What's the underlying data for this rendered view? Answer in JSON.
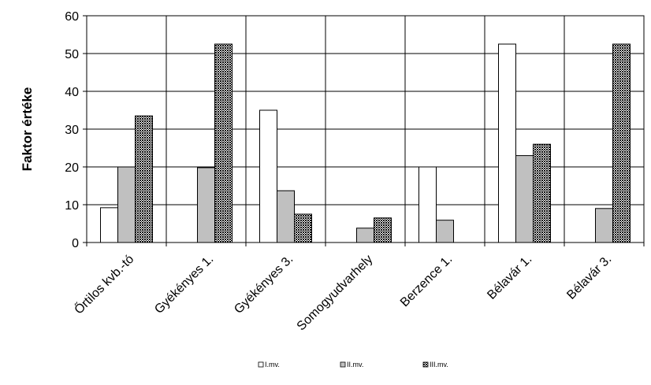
{
  "chart_data": {
    "type": "bar",
    "ylabel": "Faktor értéke",
    "ylim": [
      0,
      60
    ],
    "yticks": [
      0,
      10,
      20,
      30,
      40,
      50,
      60
    ],
    "grid": true,
    "legend_position": "bottom",
    "categories": [
      "Őrtilos kvb.-tó",
      "Gyékényes 1.",
      "Gyékényes 3.",
      "Somogyudvarhely",
      "Berzence 1.",
      "Bélavár 1.",
      "Bélavár 3."
    ],
    "series": [
      {
        "name": "I.mv.",
        "color": "#ffffff",
        "values": [
          9.2,
          0,
          35,
          0,
          20,
          52.5,
          0
        ]
      },
      {
        "name": "II.mv.",
        "color": "#c0c0c0",
        "values": [
          20,
          19.8,
          13.7,
          3.8,
          5.9,
          23,
          9
        ]
      },
      {
        "name": "III.mv.",
        "color": "#333333",
        "values": [
          33.5,
          52.5,
          7.5,
          6.5,
          0,
          26,
          52.5
        ]
      }
    ]
  }
}
